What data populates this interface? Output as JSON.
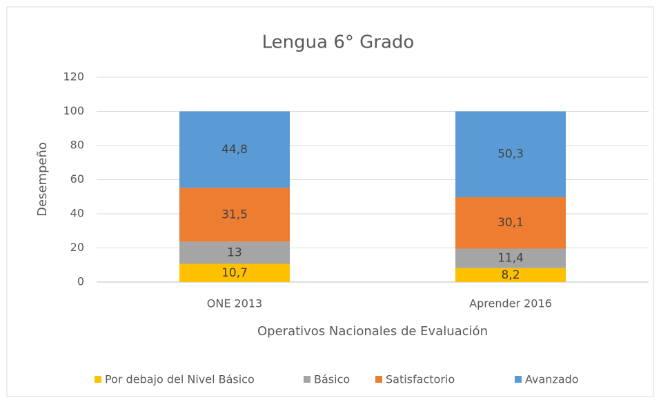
{
  "chart_data": {
    "type": "stacked_bar",
    "title": "Lengua 6° Grado",
    "x_label": "Operativos Nacionales de Evaluación",
    "y_label": "Desempeño",
    "categories": [
      "ONE 2013",
      "Aprender 2016"
    ],
    "series": [
      {
        "name": "Por debajo del Nivel Básico",
        "color": "#ffc000",
        "values": [
          10.7,
          8.2
        ],
        "value_labels": [
          "10,7",
          "8,2"
        ]
      },
      {
        "name": "Básico",
        "color": "#a5a5a5",
        "values": [
          13,
          11.4
        ],
        "value_labels": [
          "13",
          "11,4"
        ]
      },
      {
        "name": "Satisfactorio",
        "color": "#ed7d31",
        "values": [
          31.5,
          30.1
        ],
        "value_labels": [
          "31,5",
          "30,1"
        ]
      },
      {
        "name": "Avanzado",
        "color": "#5b9bd5",
        "values": [
          44.8,
          50.3
        ],
        "value_labels": [
          "44,8",
          "50,3"
        ]
      }
    ],
    "ylim": [
      0,
      120
    ],
    "yticks": [
      0,
      20,
      40,
      60,
      80,
      100,
      120
    ],
    "grid": true,
    "legend": "bottom"
  }
}
